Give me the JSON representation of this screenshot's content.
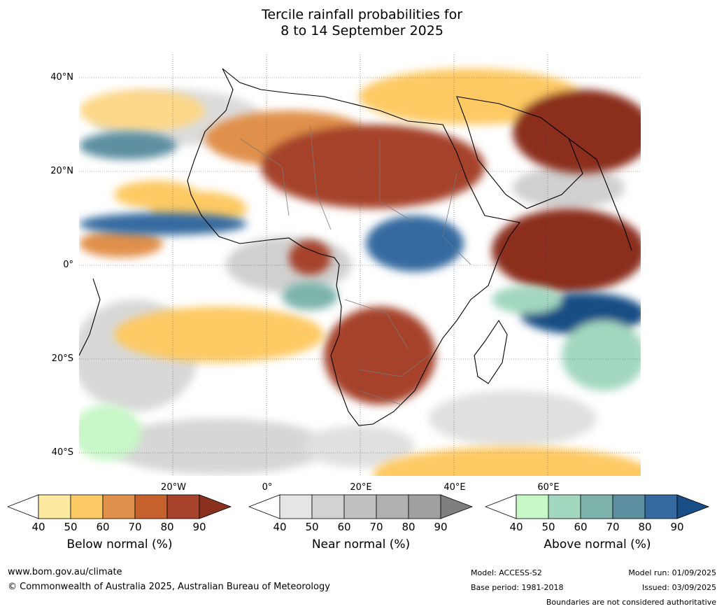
{
  "title_line1": "Tercile rainfall probabilities for",
  "title_line2": "8 to 14 September 2025",
  "lat_labels": [
    "40°N",
    "20°N",
    "0°",
    "20°S",
    "40°S"
  ],
  "lon_labels": [
    "20°W",
    "0°",
    "20°E",
    "40°E",
    "60°E"
  ],
  "colorbars": [
    {
      "label": "Below normal (%)",
      "ticks": [
        "40",
        "50",
        "60",
        "70",
        "80",
        "90"
      ],
      "colors": [
        "#ffffff",
        "#fdeaa0",
        "#fdc964",
        "#e1904b",
        "#c6602d",
        "#a6432a",
        "#8b2f1e"
      ]
    },
    {
      "label": "Near normal (%)",
      "ticks": [
        "40",
        "50",
        "60",
        "70",
        "80",
        "90"
      ],
      "colors": [
        "#ffffff",
        "#e5e5e5",
        "#d2d2d2",
        "#c0c0c0",
        "#b0b0b0",
        "#a0a0a0",
        "#7e7e7e"
      ]
    },
    {
      "label": "Above normal (%)",
      "ticks": [
        "40",
        "50",
        "60",
        "70",
        "80",
        "90"
      ],
      "colors": [
        "#ffffff",
        "#c8f7c8",
        "#a2d7bf",
        "#7db3aa",
        "#5d8fa0",
        "#356aa0",
        "#194d85"
      ]
    }
  ],
  "footer": {
    "url": "www.bom.gov.au/climate",
    "copyright": "© Commonwealth of Australia 2025, Australian Bureau of Meteorology",
    "model": "Model: ACCESS-S2",
    "base_period": "Base period: 1981-2018",
    "model_run": "Model run: 01/09/2025",
    "issued": "Issued: 03/09/2025",
    "disclaimer": "Boundaries are not considered authoritative"
  }
}
